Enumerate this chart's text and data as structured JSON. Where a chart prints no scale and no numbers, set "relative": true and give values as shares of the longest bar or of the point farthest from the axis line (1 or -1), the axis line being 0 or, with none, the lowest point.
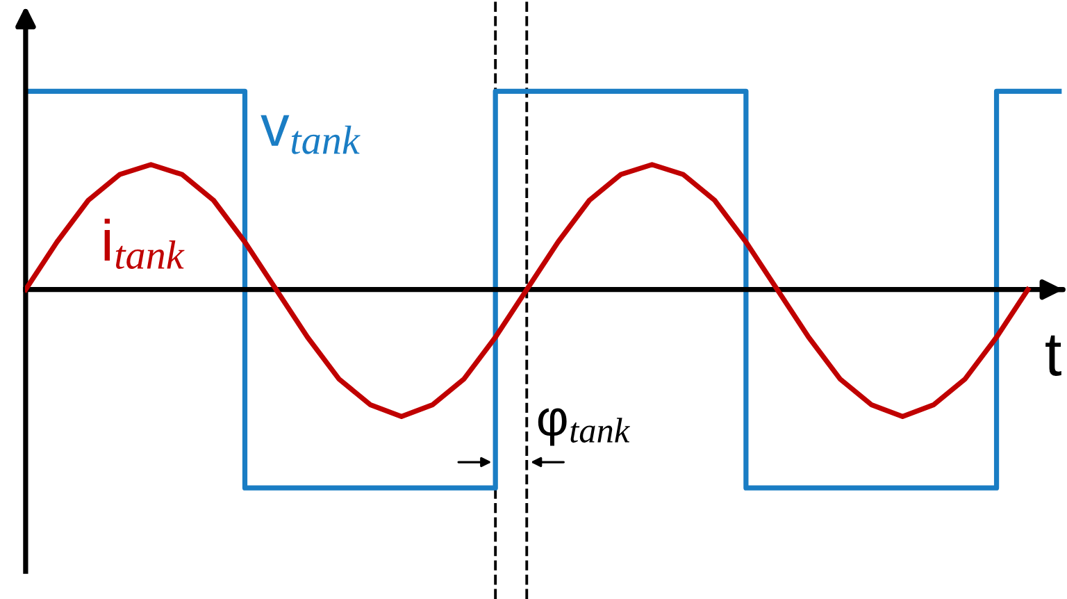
{
  "chart_data": {
    "type": "line",
    "relative": true,
    "xlabel": "t",
    "legend": false,
    "categories": [
      null,
      null,
      null,
      null,
      null,
      null,
      null,
      null,
      null,
      null,
      null,
      null,
      null,
      null,
      null,
      null,
      null,
      null,
      null,
      null,
      null,
      null,
      null,
      null,
      null,
      null,
      null,
      null,
      null,
      null,
      null,
      null,
      null,
      null
    ],
    "series": [
      {
        "name": "v$_{tank}$",
        "type": "step",
        "color": "#1a7dc4",
        "values": [
          1,
          1,
          1,
          1,
          1,
          1,
          1,
          -1,
          -1,
          -1,
          -1,
          -1,
          -1,
          -1,
          -1,
          1,
          1,
          1,
          1,
          1,
          1,
          1,
          1,
          -1,
          -1,
          -1,
          -1,
          -1,
          -1,
          -1,
          -1,
          1,
          1,
          1
        ]
      },
      {
        "name": "i$_{tank}$",
        "type": "line",
        "color": "#c00000",
        "values": [
          0,
          0.24,
          0.45,
          0.58,
          0.63,
          0.58,
          0.45,
          0.24,
          0,
          -0.24,
          -0.45,
          -0.58,
          -0.64,
          -0.58,
          -0.45,
          -0.24,
          0,
          0.24,
          0.45,
          0.58,
          0.63,
          0.58,
          0.45,
          0.24,
          0,
          -0.24,
          -0.45,
          -0.58,
          -0.64,
          -0.58,
          -0.45,
          -0.24,
          0,
          null
        ]
      }
    ],
    "annotations": [
      "φ$_{tank}$"
    ]
  }
}
